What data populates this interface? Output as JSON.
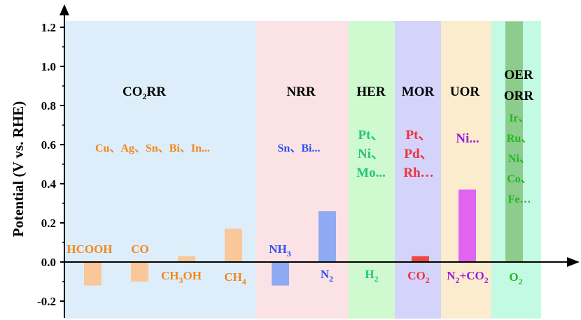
{
  "chart_data": {
    "type": "bar",
    "ylabel": "Potential (V vs. RHE)",
    "ylim": [
      -0.28,
      1.24
    ],
    "yticks": [
      "1.2",
      "1.0",
      "0.8",
      "0.6",
      "0.4",
      "0.2",
      "0.0",
      "-0.2"
    ],
    "colors": {
      "orange": "#f4861e",
      "blue": "#2d50f0",
      "teal": "#21c77d",
      "red": "#f0303a",
      "purple": "#9b1ed8",
      "green": "#22b822"
    },
    "regions": [
      {
        "title": "CO2RR",
        "title_main": "CO",
        "title_sub": "2",
        "title_tail": "RR",
        "fill": "#ddeefa",
        "catalysts": [
          "Cu、Ag、Sn、Bi、In..."
        ],
        "catalyst_color": "#f4861e"
      },
      {
        "title": "NRR",
        "fill": "#fbe3e5",
        "catalysts": [
          "Sn、Bi..."
        ],
        "catalyst_color": "#2d50f0"
      },
      {
        "title": "HER",
        "fill": "#cff9cf",
        "catalysts": [
          "Pt、",
          "Ni、",
          "Mo..."
        ],
        "catalyst_color": "#21c77d"
      },
      {
        "title": "MOR",
        "fill": "#d4d4fb",
        "catalysts": [
          "Pt、",
          "Pd、",
          "Rh…"
        ],
        "catalyst_color": "#f0303a"
      },
      {
        "title": "UOR",
        "fill": "#faeccd",
        "catalysts": [
          "Ni..."
        ],
        "catalyst_color": "#9b1ed8"
      },
      {
        "title": "OER",
        "title2": "ORR",
        "fill": "#c3fae4",
        "catalysts": [
          "Ir、",
          "Ru、",
          "Ni、",
          "Co、",
          "Fe…"
        ],
        "catalyst_color": "#22b822"
      }
    ],
    "series": [
      {
        "label": "HCOOH",
        "value": -0.12,
        "color": "#f9c79a",
        "label_color": "#f4861e"
      },
      {
        "label": "CO",
        "value": -0.1,
        "color": "#f9c79a",
        "label_color": "#f4861e"
      },
      {
        "label": "CH3OH",
        "label_main": "CH",
        "label_sub": "3",
        "label_tail": "OH",
        "value": 0.03,
        "color": "#f9c79a",
        "label_color": "#f4861e"
      },
      {
        "label": "CH4",
        "label_main": "CH",
        "label_sub": "4",
        "label_tail": "",
        "value": 0.17,
        "color": "#f9c79a",
        "label_color": "#f4861e"
      },
      {
        "label": "NH3",
        "label_main": "NH",
        "label_sub": "3",
        "label_tail": "",
        "value": -0.12,
        "color": "#8eaaf2",
        "label_color": "#2d50f0"
      },
      {
        "label": "N2",
        "label_main": "N",
        "label_sub": "2",
        "label_tail": "",
        "value": 0.26,
        "color": "#8eaaf2",
        "label_color": "#2d50f0"
      },
      {
        "label": "H2",
        "label_main": "H",
        "label_sub": "2",
        "label_tail": "",
        "value": 0.0,
        "color": "#c8f5c8",
        "label_color": "#21c77d"
      },
      {
        "label": "CO2",
        "label_main": "CO",
        "label_sub": "2",
        "label_tail": "",
        "value": 0.03,
        "color": "#f0483e",
        "label_color": "#f0303a"
      },
      {
        "label": "N2+CO2",
        "label_main": "N",
        "label_sub": "2",
        "label_tail": "+CO",
        "label_sub2": "2",
        "value": 0.37,
        "color": "#e064f0",
        "label_color": "#9b1ed8"
      },
      {
        "label": "O2",
        "label_main": "O",
        "label_sub": "2",
        "label_tail": "",
        "value": 1.23,
        "color": "#8ccc8c",
        "label_color": "#22b822"
      }
    ]
  }
}
